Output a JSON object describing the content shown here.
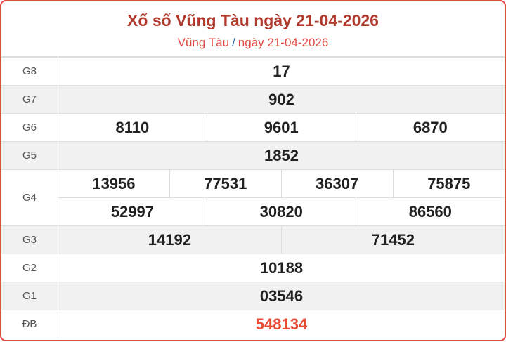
{
  "title": "Xổ số Vũng Tàu ngày 21-04-2026",
  "breadcrumb": {
    "province": "Vũng Tàu",
    "separator": "/",
    "date": "ngày 21-04-2026"
  },
  "colors": {
    "border": "#e04a45",
    "title": "#b03a2e",
    "special": "#e84a35"
  },
  "prizes": {
    "g8": {
      "label": "G8",
      "numbers": [
        "17"
      ]
    },
    "g7": {
      "label": "G7",
      "numbers": [
        "902"
      ]
    },
    "g6": {
      "label": "G6",
      "numbers": [
        "8110",
        "9601",
        "6870"
      ]
    },
    "g5": {
      "label": "G5",
      "numbers": [
        "1852"
      ]
    },
    "g4": {
      "label": "G4",
      "numbers": [
        "13956",
        "77531",
        "36307",
        "75875",
        "52997",
        "30820",
        "86560"
      ]
    },
    "g3": {
      "label": "G3",
      "numbers": [
        "14192",
        "71452"
      ]
    },
    "g2": {
      "label": "G2",
      "numbers": [
        "10188"
      ]
    },
    "g1": {
      "label": "G1",
      "numbers": [
        "03546"
      ]
    },
    "db": {
      "label": "ĐB",
      "numbers": [
        "548134"
      ]
    }
  }
}
